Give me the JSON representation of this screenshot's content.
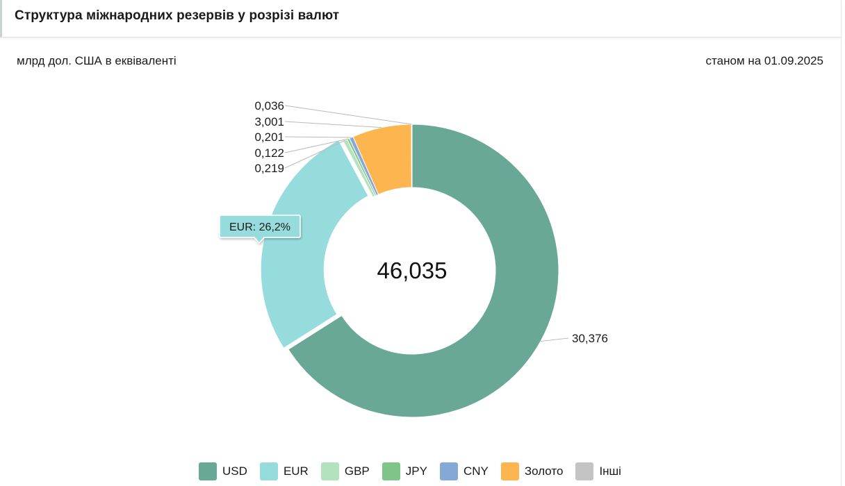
{
  "header": {
    "title": "Структура міжнародних резервів у розрізі валют"
  },
  "subtitle": {
    "units": "млрд дол. США в еквіваленті",
    "date": "станом на 01.09.2025"
  },
  "tooltip": {
    "text": "EUR: 26,2%"
  },
  "chart_data": {
    "type": "pie",
    "total": "46,035",
    "slices": [
      {
        "name": "USD",
        "value": 30.376,
        "label": "30,376",
        "color": "#69a896"
      },
      {
        "name": "EUR",
        "value": 12.08,
        "label": "",
        "color": "#97dcdc"
      },
      {
        "name": "GBP",
        "value": 0.219,
        "label": "0,219",
        "color": "#b4e2bf"
      },
      {
        "name": "JPY",
        "value": 0.122,
        "label": "0,122",
        "color": "#7fc58a"
      },
      {
        "name": "CNY",
        "value": 0.201,
        "label": "0,201",
        "color": "#86a8d6"
      },
      {
        "name": "Золото",
        "value": 3.001,
        "label": "3,001",
        "color": "#fdb54f"
      },
      {
        "name": "Інші",
        "value": 0.036,
        "label": "0,036",
        "color": "#c4c4c4"
      }
    ],
    "legend_position": "bottom"
  }
}
